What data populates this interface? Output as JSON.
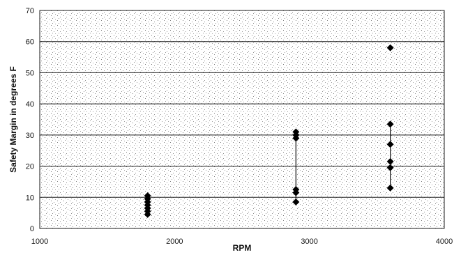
{
  "chart_data": {
    "type": "scatter",
    "title": "",
    "xlabel": "RPM",
    "ylabel": "Safety Margin in degrees F",
    "xlim": [
      1000,
      4000
    ],
    "ylim": [
      0,
      70
    ],
    "x_ticks": [
      1000,
      2000,
      3000,
      4000
    ],
    "y_ticks": [
      0,
      10,
      20,
      30,
      40,
      50,
      60,
      70
    ],
    "grid": "horizontal",
    "background": "stippled",
    "legend": "none",
    "marker": "diamond",
    "marker_color": "#000000",
    "series": [
      {
        "points": [
          {
            "x": 1800,
            "y": 10.5
          },
          {
            "x": 1800,
            "y": 9.5
          },
          {
            "x": 1800,
            "y": 8.5
          },
          {
            "x": 1800,
            "y": 7.5
          },
          {
            "x": 1800,
            "y": 6.5
          },
          {
            "x": 1800,
            "y": 5.5
          },
          {
            "x": 1800,
            "y": 4.5
          },
          {
            "x": 2900,
            "y": 31
          },
          {
            "x": 2900,
            "y": 30
          },
          {
            "x": 2900,
            "y": 29
          },
          {
            "x": 2900,
            "y": 12.5
          },
          {
            "x": 2900,
            "y": 11.5
          },
          {
            "x": 2900,
            "y": 8.5
          },
          {
            "x": 3600,
            "y": 58
          },
          {
            "x": 3600,
            "y": 33.5
          },
          {
            "x": 3600,
            "y": 27
          },
          {
            "x": 3600,
            "y": 21.5
          },
          {
            "x": 3600,
            "y": 19.5
          },
          {
            "x": 3600,
            "y": 13
          }
        ]
      }
    ]
  }
}
